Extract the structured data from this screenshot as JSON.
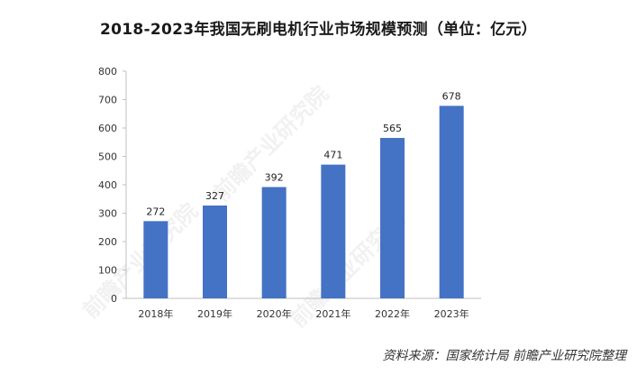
{
  "chart_data": {
    "type": "bar",
    "title": "2018-2023年我国无刷电机行业市场规模预测（单位：亿元）",
    "categories": [
      "2018年",
      "2019年",
      "2020年",
      "2021年",
      "2022年",
      "2023年"
    ],
    "values": [
      272,
      327,
      392,
      471,
      565,
      678
    ],
    "data_labels": [
      "272",
      "327",
      "392",
      "471",
      "565",
      "678"
    ],
    "ylim": [
      0,
      800
    ],
    "yticks": [
      "0",
      "100",
      "200",
      "300",
      "400",
      "500",
      "600",
      "700",
      "800"
    ],
    "xlabel": "",
    "ylabel": "",
    "grid": false,
    "bar_color": "#4472C4"
  },
  "source": "资料来源：国家统计局 前瞻产业研究院整理",
  "watermark": "前瞻产业研究院"
}
